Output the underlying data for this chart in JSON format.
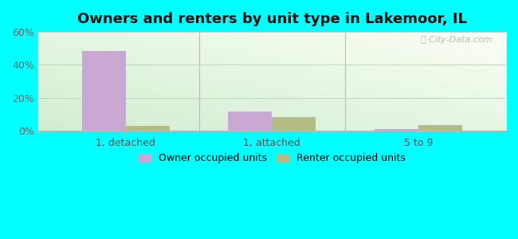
{
  "title": "Owners and renters by unit type in Lakemoor, IL",
  "categories": [
    "1, detached",
    "1, attached",
    "5 to 9"
  ],
  "owner_values": [
    48.5,
    11.5,
    1.0
  ],
  "renter_values": [
    3.0,
    8.5,
    3.5
  ],
  "owner_color": "#c9a8d4",
  "renter_color": "#b5bc82",
  "ylim": [
    0,
    60
  ],
  "yticks": [
    0,
    20,
    40,
    60
  ],
  "yticklabels": [
    "0%",
    "20%",
    "40%",
    "60%"
  ],
  "legend_owner": "Owner occupied units",
  "legend_renter": "Renter occupied units",
  "outer_bg": "#00ffff",
  "watermark": "ⓘ City-Data.com",
  "bar_width": 0.3,
  "title_fontsize": 13,
  "tick_fontsize": 9
}
